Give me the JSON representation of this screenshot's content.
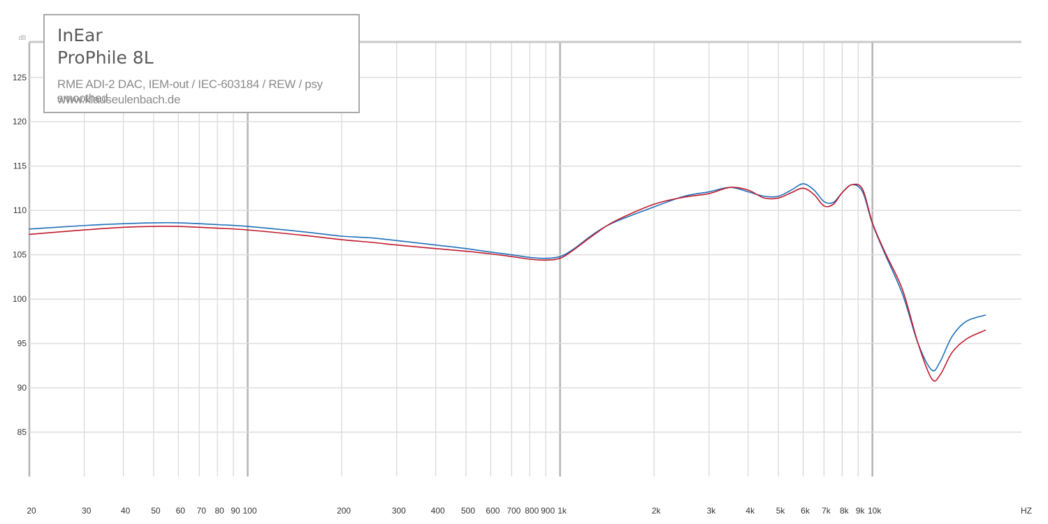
{
  "legend": {
    "brand": "InEar",
    "model": "ProPhile 8L",
    "setup": "RME ADI-2 DAC, IEM-out / IEC-603184 / REW / psy smoothed",
    "site": "www.klauseulenbach.de"
  },
  "chart_data": {
    "type": "line",
    "x_scale": "log",
    "xlim": [
      20,
      30000
    ],
    "ylim": [
      80,
      129
    ],
    "ylabel": "dB",
    "xlabel": "HZ",
    "x_ticks": [
      {
        "value": 20,
        "label": "20"
      },
      {
        "value": 30,
        "label": "30"
      },
      {
        "value": 40,
        "label": "40"
      },
      {
        "value": 50,
        "label": "50"
      },
      {
        "value": 60,
        "label": "60"
      },
      {
        "value": 70,
        "label": "70"
      },
      {
        "value": 80,
        "label": "80"
      },
      {
        "value": 90,
        "label": "90"
      },
      {
        "value": 100,
        "label": "100"
      },
      {
        "value": 200,
        "label": "200"
      },
      {
        "value": 300,
        "label": "300"
      },
      {
        "value": 400,
        "label": "400"
      },
      {
        "value": 500,
        "label": "500"
      },
      {
        "value": 600,
        "label": "600"
      },
      {
        "value": 700,
        "label": "700"
      },
      {
        "value": 800,
        "label": "800"
      },
      {
        "value": 900,
        "label": "900"
      },
      {
        "value": 1000,
        "label": "1k"
      },
      {
        "value": 2000,
        "label": "2k"
      },
      {
        "value": 3000,
        "label": "3k"
      },
      {
        "value": 4000,
        "label": "4k"
      },
      {
        "value": 5000,
        "label": "5k"
      },
      {
        "value": 6000,
        "label": "6k"
      },
      {
        "value": 7000,
        "label": "7k"
      },
      {
        "value": 8000,
        "label": "8k"
      },
      {
        "value": 9000,
        "label": "9k"
      },
      {
        "value": 10000,
        "label": "10k"
      }
    ],
    "y_ticks": [
      85,
      90,
      95,
      100,
      105,
      110,
      115,
      120,
      125
    ],
    "series": [
      {
        "color": "#1f6fb8",
        "points": [
          [
            20,
            107.9
          ],
          [
            30,
            108.3
          ],
          [
            40,
            108.5
          ],
          [
            50,
            108.6
          ],
          [
            60,
            108.6
          ],
          [
            80,
            108.4
          ],
          [
            100,
            108.2
          ],
          [
            150,
            107.6
          ],
          [
            200,
            107.1
          ],
          [
            250,
            106.9
          ],
          [
            300,
            106.6
          ],
          [
            400,
            106.1
          ],
          [
            500,
            105.7
          ],
          [
            600,
            105.3
          ],
          [
            700,
            105.0
          ],
          [
            800,
            104.7
          ],
          [
            900,
            104.6
          ],
          [
            1000,
            104.8
          ],
          [
            1100,
            105.6
          ],
          [
            1300,
            107.5
          ],
          [
            1500,
            108.7
          ],
          [
            2000,
            110.4
          ],
          [
            2500,
            111.6
          ],
          [
            3000,
            112.1
          ],
          [
            3500,
            112.6
          ],
          [
            4000,
            112.1
          ],
          [
            4500,
            111.6
          ],
          [
            5000,
            111.6
          ],
          [
            5500,
            112.3
          ],
          [
            6000,
            113.0
          ],
          [
            6500,
            112.3
          ],
          [
            7000,
            111.0
          ],
          [
            7500,
            110.9
          ],
          [
            8000,
            112.0
          ],
          [
            8600,
            112.9
          ],
          [
            9300,
            112.1
          ],
          [
            10000,
            108.5
          ],
          [
            11000,
            105.0
          ],
          [
            12500,
            100.5
          ],
          [
            14000,
            95.0
          ],
          [
            15500,
            92.0
          ],
          [
            16500,
            93.0
          ],
          [
            18000,
            95.8
          ],
          [
            20000,
            97.5
          ],
          [
            23000,
            98.2
          ]
        ]
      },
      {
        "color": "#c0182b",
        "points": [
          [
            20,
            107.3
          ],
          [
            30,
            107.8
          ],
          [
            40,
            108.1
          ],
          [
            50,
            108.2
          ],
          [
            60,
            108.2
          ],
          [
            80,
            108.0
          ],
          [
            100,
            107.8
          ],
          [
            150,
            107.2
          ],
          [
            200,
            106.7
          ],
          [
            250,
            106.4
          ],
          [
            300,
            106.1
          ],
          [
            400,
            105.7
          ],
          [
            500,
            105.4
          ],
          [
            600,
            105.1
          ],
          [
            700,
            104.8
          ],
          [
            800,
            104.5
          ],
          [
            900,
            104.4
          ],
          [
            1000,
            104.6
          ],
          [
            1100,
            105.5
          ],
          [
            1300,
            107.4
          ],
          [
            1500,
            108.8
          ],
          [
            2000,
            110.7
          ],
          [
            2500,
            111.5
          ],
          [
            3000,
            111.9
          ],
          [
            3500,
            112.6
          ],
          [
            4000,
            112.3
          ],
          [
            4500,
            111.4
          ],
          [
            5000,
            111.4
          ],
          [
            5500,
            112.0
          ],
          [
            6000,
            112.5
          ],
          [
            6500,
            111.8
          ],
          [
            7000,
            110.5
          ],
          [
            7500,
            110.7
          ],
          [
            8000,
            112.0
          ],
          [
            8600,
            112.9
          ],
          [
            9300,
            112.4
          ],
          [
            10000,
            108.6
          ],
          [
            11000,
            105.2
          ],
          [
            12500,
            101.0
          ],
          [
            14000,
            95.0
          ],
          [
            15500,
            91.0
          ],
          [
            16500,
            91.5
          ],
          [
            18000,
            94.0
          ],
          [
            20000,
            95.5
          ],
          [
            23000,
            96.5
          ]
        ]
      }
    ]
  }
}
